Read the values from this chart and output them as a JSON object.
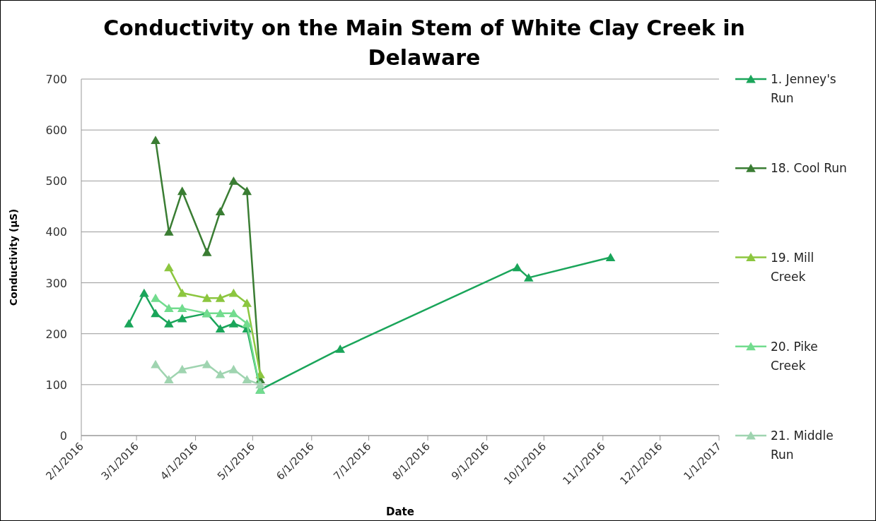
{
  "chart_data": {
    "type": "line",
    "title": "Conductivity on the Main Stem of White Clay Creek in Delaware",
    "xlabel": "Date",
    "ylabel": "Conductivity (µS)",
    "xlim": [
      "2016-02-01",
      "2017-01-01"
    ],
    "xticks": [
      {
        "value": "2016-02-01",
        "label": "2/1/2016"
      },
      {
        "value": "2016-03-01",
        "label": "3/1/2016"
      },
      {
        "value": "2016-04-01",
        "label": "4/1/2016"
      },
      {
        "value": "2016-05-01",
        "label": "5/1/2016"
      },
      {
        "value": "2016-06-01",
        "label": "6/1/2016"
      },
      {
        "value": "2016-07-01",
        "label": "7/1/2016"
      },
      {
        "value": "2016-08-01",
        "label": "8/1/2016"
      },
      {
        "value": "2016-09-01",
        "label": "9/1/2016"
      },
      {
        "value": "2016-10-01",
        "label": "10/1/2016"
      },
      {
        "value": "2016-11-01",
        "label": "11/1/2016"
      },
      {
        "value": "2016-12-01",
        "label": "12/1/2016"
      },
      {
        "value": "2017-01-01",
        "label": "1/1/2017"
      }
    ],
    "ylim": [
      0,
      700
    ],
    "yticks": [
      0,
      100,
      200,
      300,
      400,
      500,
      600,
      700
    ],
    "grid": "y",
    "legend": "right",
    "marker": "triangle",
    "series": [
      {
        "name": "1. Jenney's Run",
        "color": "#1aa55a",
        "x": [
          "2016-02-26",
          "2016-03-05",
          "2016-03-11",
          "2016-03-18",
          "2016-03-25",
          "2016-04-07",
          "2016-04-14",
          "2016-04-21",
          "2016-04-28",
          "2016-05-05",
          "2016-06-16",
          "2016-09-17",
          "2016-09-23",
          "2016-11-05"
        ],
        "values": [
          220,
          280,
          240,
          220,
          230,
          240,
          210,
          220,
          210,
          90,
          170,
          330,
          310,
          350
        ]
      },
      {
        "name": "18. Cool Run",
        "color": "#3a7d33",
        "x": [
          "2016-03-11",
          "2016-03-18",
          "2016-03-25",
          "2016-04-07",
          "2016-04-14",
          "2016-04-21",
          "2016-04-28",
          "2016-05-05"
        ],
        "values": [
          580,
          400,
          480,
          360,
          440,
          500,
          480,
          110
        ]
      },
      {
        "name": "19. Mill Creek",
        "color": "#8cc63f",
        "x": [
          "2016-03-18",
          "2016-03-25",
          "2016-04-07",
          "2016-04-14",
          "2016-04-21",
          "2016-04-28",
          "2016-05-05"
        ],
        "values": [
          330,
          280,
          270,
          270,
          280,
          260,
          120
        ]
      },
      {
        "name": "20. Pike Creek",
        "color": "#72dc8e",
        "x": [
          "2016-03-11",
          "2016-03-18",
          "2016-03-25",
          "2016-04-07",
          "2016-04-14",
          "2016-04-21",
          "2016-04-28",
          "2016-05-05"
        ],
        "values": [
          270,
          250,
          250,
          240,
          240,
          240,
          220,
          90
        ]
      },
      {
        "name": "21. Middle Run",
        "color": "#9fd4b0",
        "x": [
          "2016-03-11",
          "2016-03-18",
          "2016-03-25",
          "2016-04-07",
          "2016-04-14",
          "2016-04-21",
          "2016-04-28",
          "2016-05-05"
        ],
        "values": [
          140,
          110,
          130,
          140,
          120,
          130,
          110,
          100
        ]
      }
    ]
  }
}
